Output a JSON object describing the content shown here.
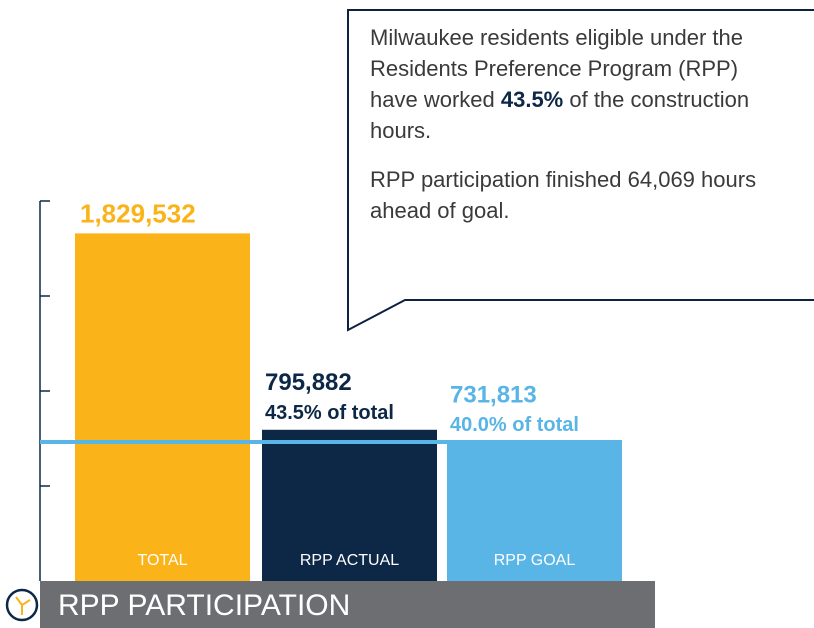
{
  "chart_data": {
    "type": "bar",
    "title": "RPP PARTICIPATION",
    "categories": [
      "TOTAL",
      "RPP ACTUAL",
      "RPP GOAL"
    ],
    "values": [
      1829532,
      795882,
      731813
    ],
    "value_labels": [
      "1,829,532",
      "795,882",
      "731,813"
    ],
    "share_labels": [
      null,
      "43.5% of total",
      "40.0% of total"
    ],
    "colors": [
      "#fbb31a",
      "#0d2847",
      "#58b5e6"
    ],
    "goal_line_color": "#58b5e6",
    "ylim": [
      0,
      2000000
    ],
    "yticks": [
      500000,
      1000000,
      1500000,
      2000000
    ],
    "callout": {
      "text_before": "Milwaukee residents eligible under the Residents Preference Program (RPP) have worked ",
      "highlight": "43.5%",
      "text_after": " of the construction hours.",
      "note": "RPP participation finished 64,069 hours ahead of goal."
    }
  }
}
